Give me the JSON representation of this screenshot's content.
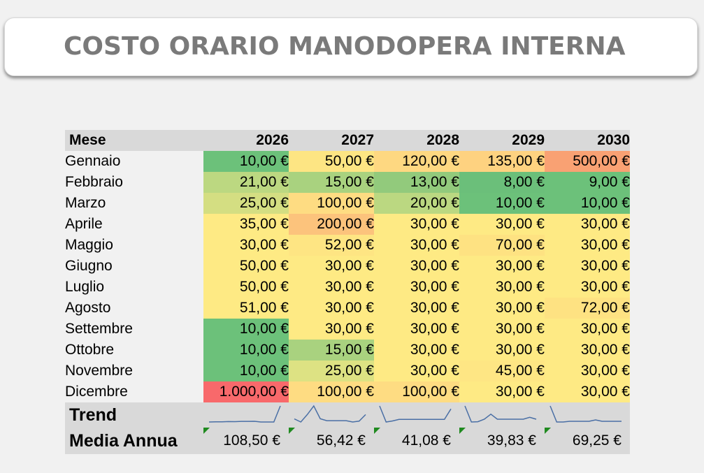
{
  "title": "COSTO ORARIO MANODOPERA INTERNA",
  "table": {
    "header_label": "Mese",
    "years": [
      "2026",
      "2027",
      "2028",
      "2029",
      "2030"
    ],
    "rows": [
      {
        "month": "Gennaio",
        "values": [
          "10,00 €",
          "50,00 €",
          "120,00 €",
          "135,00 €",
          "500,00 €"
        ],
        "colors": [
          "#6cc17a",
          "#fde583",
          "#fed881",
          "#fed280",
          "#f9a173"
        ]
      },
      {
        "month": "Febbraio",
        "values": [
          "21,00 €",
          "15,00 €",
          "13,00 €",
          "8,00 €",
          "9,00 €"
        ],
        "colors": [
          "#bcd881",
          "#a9d27f",
          "#92ca7c",
          "#6bbf7a",
          "#6cc17a"
        ]
      },
      {
        "month": "Marzo",
        "values": [
          "25,00 €",
          "100,00 €",
          "20,00 €",
          "10,00 €",
          "10,00 €"
        ],
        "colors": [
          "#d4de82",
          "#fedc82",
          "#bbd881",
          "#6cc17a",
          "#6cc17a"
        ]
      },
      {
        "month": "Aprile",
        "values": [
          "35,00 €",
          "200,00 €",
          "30,00 €",
          "30,00 €",
          "30,00 €"
        ],
        "colors": [
          "#feea84",
          "#fcc37c",
          "#feea84",
          "#feea84",
          "#feea84"
        ]
      },
      {
        "month": "Maggio",
        "values": [
          "30,00 €",
          "52,00 €",
          "30,00 €",
          "70,00 €",
          "30,00 €"
        ],
        "colors": [
          "#feea84",
          "#fee583",
          "#feea84",
          "#fee282",
          "#feea84"
        ]
      },
      {
        "month": "Giugno",
        "values": [
          "50,00 €",
          "30,00 €",
          "30,00 €",
          "30,00 €",
          "30,00 €"
        ],
        "colors": [
          "#feea84",
          "#feea84",
          "#feea84",
          "#feea84",
          "#feea84"
        ]
      },
      {
        "month": "Luglio",
        "values": [
          "50,00 €",
          "30,00 €",
          "30,00 €",
          "30,00 €",
          "30,00 €"
        ],
        "colors": [
          "#feea84",
          "#feea84",
          "#feea84",
          "#feea84",
          "#feea84"
        ]
      },
      {
        "month": "Agosto",
        "values": [
          "51,00 €",
          "30,00 €",
          "30,00 €",
          "30,00 €",
          "72,00 €"
        ],
        "colors": [
          "#feea84",
          "#feea84",
          "#feea84",
          "#feea84",
          "#fee282"
        ]
      },
      {
        "month": "Settembre",
        "values": [
          "10,00 €",
          "30,00 €",
          "30,00 €",
          "30,00 €",
          "30,00 €"
        ],
        "colors": [
          "#6cc17a",
          "#feea84",
          "#feea84",
          "#feea84",
          "#feea84"
        ]
      },
      {
        "month": "Ottobre",
        "values": [
          "10,00 €",
          "15,00 €",
          "30,00 €",
          "30,00 €",
          "30,00 €"
        ],
        "colors": [
          "#6cc17a",
          "#a9d27f",
          "#feea84",
          "#feea84",
          "#feea84"
        ]
      },
      {
        "month": "Novembre",
        "values": [
          "10,00 €",
          "25,00 €",
          "30,00 €",
          "45,00 €",
          "30,00 €"
        ],
        "colors": [
          "#6cc17a",
          "#dde283",
          "#feea84",
          "#fee684",
          "#feea84"
        ]
      },
      {
        "month": "Dicembre",
        "values": [
          "1.000,00 €",
          "100,00 €",
          "100,00 €",
          "30,00 €",
          "30,00 €"
        ],
        "colors": [
          "#f8696b",
          "#fedc82",
          "#fedc82",
          "#feea84",
          "#feea84"
        ]
      }
    ],
    "trend_label": "Trend",
    "media_label": "Media Annua",
    "media_values": [
      "108,50 €",
      "56,42 €",
      "41,08 €",
      "39,83 €",
      "69,25 €"
    ],
    "flag_color": "#1f8a1f",
    "spark_color": "#4a6fa5"
  }
}
